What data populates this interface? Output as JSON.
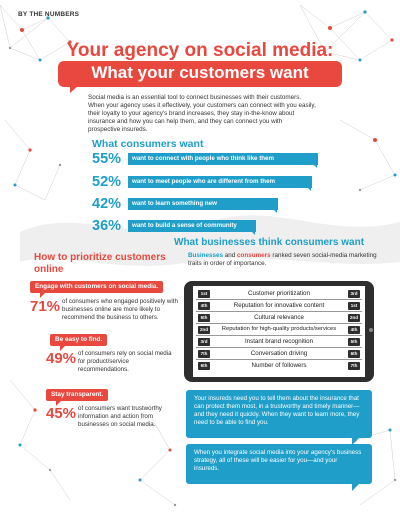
{
  "header": {
    "kicker": "BY THE NUMBERS",
    "title_line1": "Your agency on social media:",
    "title_line2": "What your customers want"
  },
  "intro": "Social media is an essential tool to connect businesses with their customers. When your agency uses it effectively, your customers can connect with you easily, their loyalty to your agency's brand increases, they stay in-the-know about insurance and how you can help them, and they can connect you with prospective insureds.",
  "consumers_want": {
    "heading": "What consumers want",
    "items": [
      {
        "pct": "55%",
        "text": "want to connect with people who think like them",
        "fraction": 0.55
      },
      {
        "pct": "52%",
        "text": "want to meet people who are different from them",
        "fraction": 0.52
      },
      {
        "pct": "42%",
        "text": "want to learn something new",
        "fraction": 0.42
      },
      {
        "pct": "36%",
        "text": "want to build a sense of community",
        "fraction": 0.36
      }
    ]
  },
  "businesses_think": {
    "heading": "What businesses think consumers want",
    "subtitle_businesses": "Businesses",
    "subtitle_and": " and ",
    "subtitle_consumers": "consumers",
    "subtitle_rest": " ranked seven social-media marketing traits in order of importance.",
    "rows": [
      {
        "left": "1st",
        "label": "Customer prioritization",
        "right": "3rd"
      },
      {
        "left": "4th",
        "label": "Reputation for innovative content",
        "right": "1st"
      },
      {
        "left": "5th",
        "label": "Cultural relevance",
        "right": "2nd"
      },
      {
        "left": "2nd",
        "label": "Reputation for high-quality products/services",
        "right": "4th"
      },
      {
        "left": "3rd",
        "label": "Instant brand recognition",
        "right": "5th"
      },
      {
        "left": "7th",
        "label": "Conversation driving",
        "right": "6th"
      },
      {
        "left": "6th",
        "label": "Number of followers",
        "right": "7th"
      }
    ]
  },
  "prioritize": {
    "heading": "How to prioritize customers online",
    "items": [
      {
        "tag": "Engage with customers on social media.",
        "pct": "71%",
        "desc": "of consumers who engaged positively with businesses online are more likely to recommend the business to others."
      },
      {
        "tag": "Be easy to find.",
        "pct": "49%",
        "desc": "of consumers rely on social media for product/service recommendations."
      },
      {
        "tag": "Stay transparent.",
        "pct": "45%",
        "desc": "of consumers want trustworthy information and action from businesses on social media."
      }
    ]
  },
  "bubbles": {
    "first": "Your insureds need you to tell them about the insurance that can protect them most, in a trustworthy and timely manner—and they need it quickly. When they want to learn more, they need to be able to find you.",
    "second": "When you integrate social media into your agency's business strategy, all of these will be easier for you—and your insureds."
  },
  "colors": {
    "accent_red": "#e8483e",
    "accent_blue": "#1e9ec8",
    "tablet": "#2e2e2e"
  }
}
